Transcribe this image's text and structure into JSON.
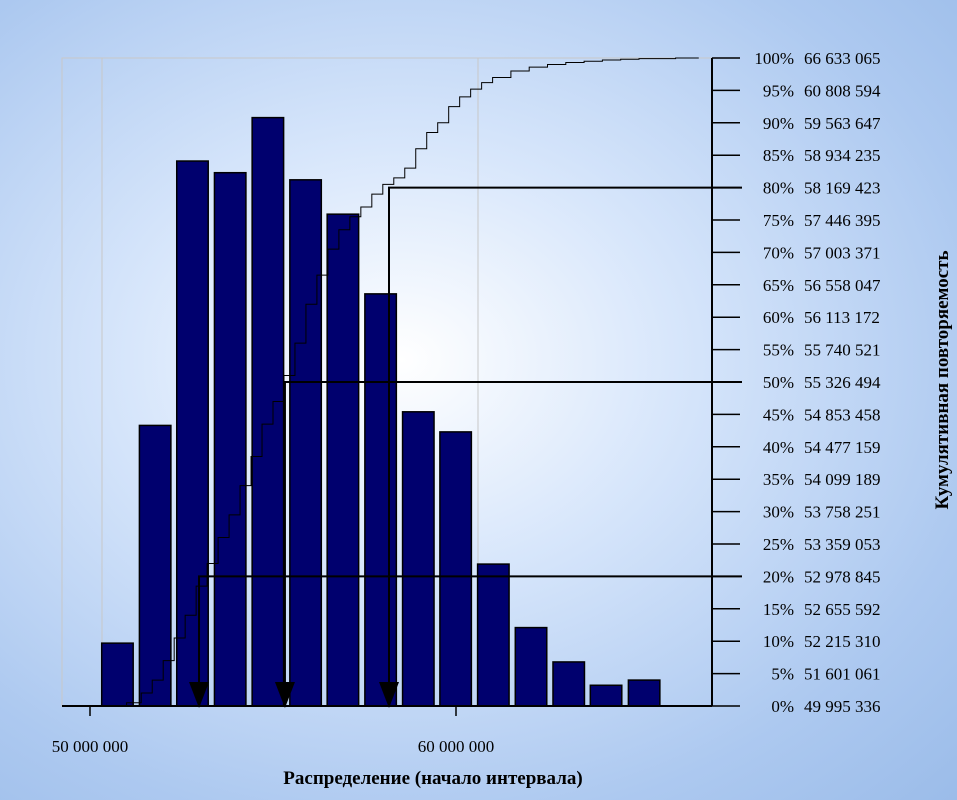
{
  "chart_data": {
    "type": "bar",
    "xlabel": "Распределение (начало интервала)",
    "ylabel_right": "Кумулятивная повторяемость",
    "x_ticks": [
      {
        "value": 50000000,
        "label": "50 000 000"
      },
      {
        "value": 60000000,
        "label": "60 000 000"
      }
    ],
    "x_range": [
      49000000,
      66633065
    ],
    "bar_width_units": 860000,
    "bars": [
      {
        "x": 50750000,
        "height": 9.7
      },
      {
        "x": 51780000,
        "height": 43.3
      },
      {
        "x": 52800000,
        "height": 84.1
      },
      {
        "x": 53830000,
        "height": 82.3
      },
      {
        "x": 54860000,
        "height": 90.8
      },
      {
        "x": 55890000,
        "height": 81.2
      },
      {
        "x": 56910000,
        "height": 75.9
      },
      {
        "x": 57940000,
        "height": 63.6
      },
      {
        "x": 58970000,
        "height": 45.4
      },
      {
        "x": 59990000,
        "height": 42.3
      },
      {
        "x": 61020000,
        "height": 21.9
      },
      {
        "x": 62050000,
        "height": 12.1
      },
      {
        "x": 63080000,
        "height": 6.8
      },
      {
        "x": 64100000,
        "height": 3.2
      },
      {
        "x": 65140000,
        "height": 4.0
      }
    ],
    "bar_scale_max": 100,
    "cumulative_labels": [
      {
        "pct": 100,
        "pct_label": "100%",
        "value_label": "66 633 065"
      },
      {
        "pct": 95,
        "pct_label": "95%",
        "value_label": "60 808 594"
      },
      {
        "pct": 90,
        "pct_label": "90%",
        "value_label": "59 563 647"
      },
      {
        "pct": 85,
        "pct_label": "85%",
        "value_label": "58 934 235"
      },
      {
        "pct": 80,
        "pct_label": "80%",
        "value_label": "58 169 423"
      },
      {
        "pct": 75,
        "pct_label": "75%",
        "value_label": "57 446 395"
      },
      {
        "pct": 70,
        "pct_label": "70%",
        "value_label": "57 003 371"
      },
      {
        "pct": 65,
        "pct_label": "65%",
        "value_label": "56 558 047"
      },
      {
        "pct": 60,
        "pct_label": "60%",
        "value_label": "56 113 172"
      },
      {
        "pct": 55,
        "pct_label": "55%",
        "value_label": "55 740 521"
      },
      {
        "pct": 50,
        "pct_label": "50%",
        "value_label": "55 326 494"
      },
      {
        "pct": 45,
        "pct_label": "45%",
        "value_label": "54 853 458"
      },
      {
        "pct": 40,
        "pct_label": "40%",
        "value_label": "54 477 159"
      },
      {
        "pct": 35,
        "pct_label": "35%",
        "value_label": "54 099 189"
      },
      {
        "pct": 30,
        "pct_label": "30%",
        "value_label": "53 758 251"
      },
      {
        "pct": 25,
        "pct_label": "25%",
        "value_label": "53 359 053"
      },
      {
        "pct": 20,
        "pct_label": "20%",
        "value_label": "52 978 845"
      },
      {
        "pct": 15,
        "pct_label": "15%",
        "value_label": "52 655 592"
      },
      {
        "pct": 10,
        "pct_label": "10%",
        "value_label": "52 215 310"
      },
      {
        "pct": 5,
        "pct_label": "5%",
        "value_label": "51 601 061"
      },
      {
        "pct": 0,
        "pct_label": "0%",
        "value_label": "49 995 336"
      }
    ],
    "cumulative_curve": [
      [
        50700000,
        0
      ],
      [
        51000000,
        0.5
      ],
      [
        51400000,
        2
      ],
      [
        51700000,
        4
      ],
      [
        52000000,
        7
      ],
      [
        52300000,
        10.5
      ],
      [
        52600000,
        14
      ],
      [
        52900000,
        18.5
      ],
      [
        53200000,
        22
      ],
      [
        53500000,
        26
      ],
      [
        53800000,
        29.5
      ],
      [
        54100000,
        34
      ],
      [
        54400000,
        38.5
      ],
      [
        54700000,
        43.5
      ],
      [
        55000000,
        47
      ],
      [
        55300000,
        51
      ],
      [
        55600000,
        56
      ],
      [
        55900000,
        62
      ],
      [
        56200000,
        66.5
      ],
      [
        56500000,
        70.5
      ],
      [
        56800000,
        73.5
      ],
      [
        57100000,
        75.5
      ],
      [
        57400000,
        77
      ],
      [
        57700000,
        79
      ],
      [
        58000000,
        80.5
      ],
      [
        58300000,
        81.5
      ],
      [
        58600000,
        83
      ],
      [
        58900000,
        86
      ],
      [
        59200000,
        88.5
      ],
      [
        59500000,
        90
      ],
      [
        59800000,
        92.5
      ],
      [
        60100000,
        94
      ],
      [
        60400000,
        95.2
      ],
      [
        60700000,
        96.2
      ],
      [
        61000000,
        97
      ],
      [
        61500000,
        98
      ],
      [
        62000000,
        98.6
      ],
      [
        62500000,
        99
      ],
      [
        63000000,
        99.3
      ],
      [
        63500000,
        99.5
      ],
      [
        64000000,
        99.7
      ],
      [
        64500000,
        99.8
      ],
      [
        65000000,
        99.9
      ],
      [
        66000000,
        100
      ],
      [
        66633065,
        100
      ]
    ],
    "markers": [
      {
        "pct": 20,
        "x": 52978845
      },
      {
        "pct": 50,
        "x": 55326494
      },
      {
        "pct": 80,
        "x": 58169423
      }
    ],
    "grid": true,
    "bar_color": "#00006e",
    "curve_color": "#000000"
  }
}
